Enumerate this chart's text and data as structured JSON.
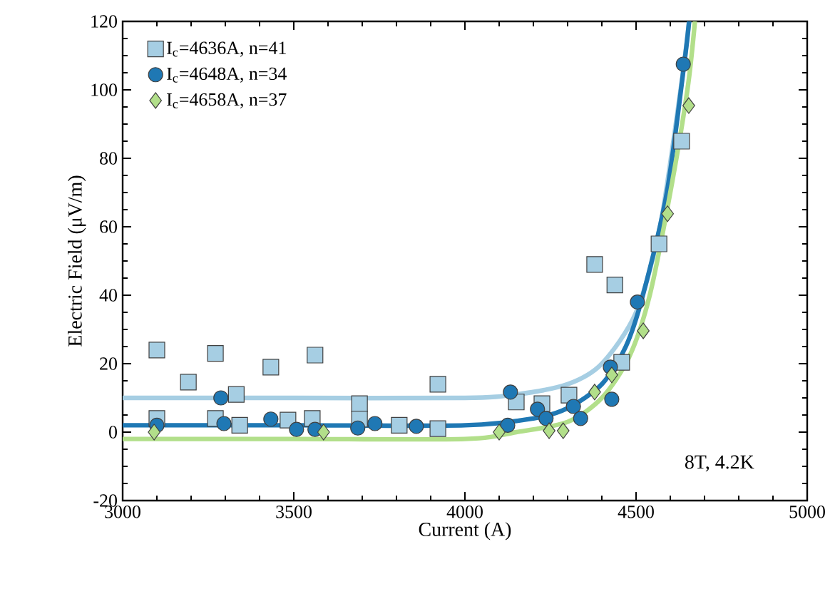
{
  "chart_data": {
    "type": "scatter",
    "xlabel": "Current (A)",
    "ylabel": "Electric Field (μV/m)",
    "xlim": [
      3000,
      5000
    ],
    "ylim": [
      -20,
      120
    ],
    "xticks": [
      3000,
      3500,
      4000,
      4500,
      5000
    ],
    "yticks": [
      -20,
      0,
      20,
      40,
      60,
      80,
      100,
      120
    ],
    "legend": "top left",
    "grid": false,
    "annotations": [
      "8T, 4.2K"
    ],
    "series": [
      {
        "type": "line",
        "color": "#a6cee3",
        "marker": "none",
        "x": [
          3000,
          3500,
          4000,
          4150,
          4300,
          4400,
          4500,
          4570,
          4630,
          4655
        ],
        "values": [
          10,
          10,
          10,
          11,
          14,
          20,
          35,
          60,
          100,
          120
        ]
      },
      {
        "type": "line",
        "color": "#1f78b4",
        "marker": "none",
        "x": [
          3000,
          3500,
          4000,
          4200,
          4300,
          4400,
          4470,
          4520,
          4590,
          4640,
          4655
        ],
        "values": [
          2,
          2,
          2,
          4,
          7,
          14,
          25,
          40,
          70,
          107,
          120
        ]
      },
      {
        "type": "line",
        "color": "#b2df8a",
        "marker": "none",
        "x": [
          3000,
          3500,
          4000,
          4150,
          4300,
          4400,
          4480,
          4540,
          4600,
          4650,
          4672
        ],
        "values": [
          -2,
          -2,
          -2,
          0,
          3,
          10,
          22,
          40,
          70,
          100,
          120
        ]
      },
      {
        "name": "I$_{c}$=4636A, n=41",
        "color": "#a6cee3",
        "marker": "square",
        "x": [
          3100,
          3100,
          3192,
          3271,
          3271,
          3332,
          3342,
          3433,
          3483,
          3562,
          3554,
          3692,
          3692,
          3808,
          3921,
          3921,
          4150,
          4225,
          4304,
          4379,
          4438,
          4458,
          4567,
          4633
        ],
        "values": [
          24,
          4,
          14.6,
          23,
          4,
          11,
          2,
          19,
          3.5,
          22.5,
          4,
          8.3,
          3.8,
          2,
          14,
          1,
          8.8,
          8.3,
          10.8,
          49,
          43,
          20.4,
          55,
          85
        ]
      },
      {
        "name": "I$_{c}$=4648A, n=34",
        "color": "#1f78b4",
        "marker": "circle",
        "x": [
          3100,
          3287,
          3296,
          3433,
          3508,
          3562,
          3687,
          3737,
          3858,
          4133,
          4125,
          4212,
          4237,
          4317,
          4338,
          4425,
          4429,
          4504,
          4638
        ],
        "values": [
          2,
          10,
          2.5,
          3.8,
          0.8,
          0.8,
          1.2,
          2.5,
          1.7,
          11.7,
          2,
          6.7,
          4,
          7.5,
          4,
          19,
          9.6,
          38,
          107.5
        ]
      },
      {
        "name": "I$_{c}$=4658A, n=37",
        "color": "#b2df8a",
        "marker": "diamond",
        "x": [
          3092,
          3587,
          4100,
          4246,
          4287,
          4379,
          4429,
          4521,
          4592,
          4654
        ],
        "values": [
          0,
          0,
          0,
          0.4,
          0.4,
          11.7,
          16.7,
          29.6,
          63.8,
          95.4
        ]
      }
    ]
  }
}
